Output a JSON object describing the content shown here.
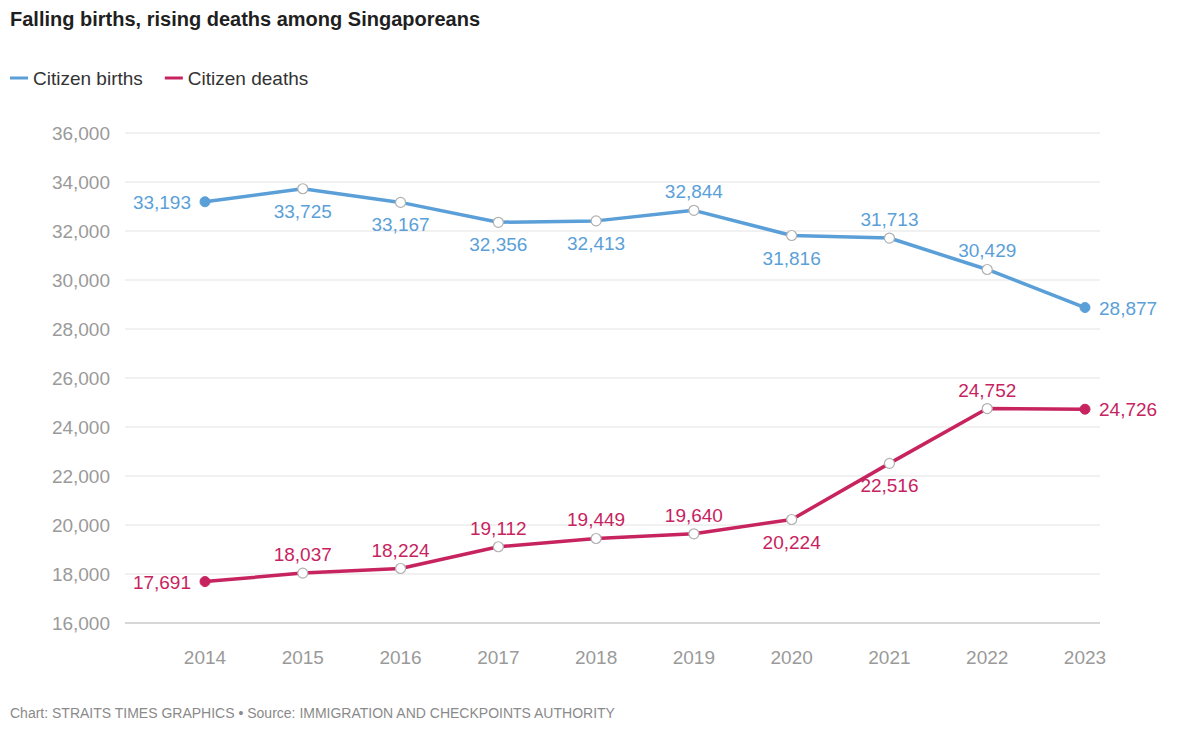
{
  "chart_data": {
    "type": "line",
    "title": "Falling births, rising deaths among Singaporeans",
    "source": "Chart: STRAITS TIMES GRAPHICS • Source: IMMIGRATION AND CHECKPOINTS AUTHORITY",
    "categories": [
      "2014",
      "2015",
      "2016",
      "2017",
      "2018",
      "2019",
      "2020",
      "2021",
      "2022",
      "2023"
    ],
    "series": [
      {
        "name": "Citizen births",
        "color": "#5b9fd8",
        "marker": "circle",
        "values": [
          33193,
          33725,
          33167,
          32356,
          32413,
          32844,
          31816,
          31713,
          30429,
          28877
        ],
        "value_labels": [
          "33,193",
          "33,725",
          "33,167",
          "32,356",
          "32,413",
          "32,844",
          "31,816",
          "31,713",
          "30,429",
          "28,877"
        ]
      },
      {
        "name": "Citizen deaths",
        "color": "#c7245f",
        "marker": "circle",
        "values": [
          17691,
          18037,
          18224,
          19112,
          19449,
          19640,
          20224,
          22516,
          24752,
          24726
        ],
        "value_labels": [
          "17,691",
          "18,037",
          "18,224",
          "19,112",
          "19,449",
          "19,640",
          "20,224",
          "22,516",
          "24,752",
          "24,726"
        ]
      }
    ],
    "ylim": [
      16000,
      36000
    ],
    "yticks": [
      {
        "value": 16000,
        "label": "16,000"
      },
      {
        "value": 18000,
        "label": "18,000"
      },
      {
        "value": 20000,
        "label": "20,000"
      },
      {
        "value": 22000,
        "label": "22,000"
      },
      {
        "value": 24000,
        "label": "24,000"
      },
      {
        "value": 26000,
        "label": "26,000"
      },
      {
        "value": 28000,
        "label": "28,000"
      },
      {
        "value": 30000,
        "label": "30,000"
      },
      {
        "value": 32000,
        "label": "32,000"
      },
      {
        "value": 34000,
        "label": "34,000"
      },
      {
        "value": 36000,
        "label": "36,000"
      }
    ],
    "grid": true,
    "legend": "top-left",
    "data_labels": true
  }
}
